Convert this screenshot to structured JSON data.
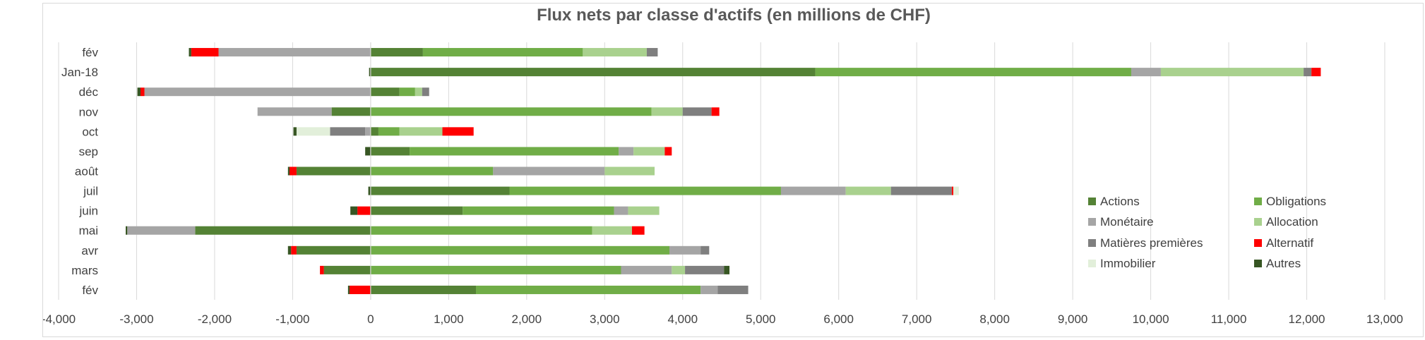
{
  "chart_data": {
    "type": "bar",
    "orientation": "horizontal",
    "stacked": true,
    "title": "Flux nets par classe d'actifs (en millions de CHF)",
    "xlabel": "",
    "ylabel": "",
    "xlim": [
      -4000,
      13000
    ],
    "x_ticks": [
      -4000,
      -3000,
      -2000,
      -1000,
      0,
      1000,
      2000,
      3000,
      4000,
      5000,
      6000,
      7000,
      8000,
      9000,
      10000,
      11000,
      12000,
      13000
    ],
    "x_tick_labels": [
      "-4,000",
      "-3,000",
      "-2,000",
      "-1,000",
      "0",
      "1,000",
      "2,000",
      "3,000",
      "4,000",
      "5,000",
      "6,000",
      "7,000",
      "8,000",
      "9,000",
      "10,000",
      "11,000",
      "12,000",
      "13,000"
    ],
    "grid": "vertical",
    "legend_position": "bottom-right",
    "categories": [
      "fév",
      "Jan-18",
      "déc",
      "nov",
      "oct",
      "sep",
      "août",
      "juil",
      "juin",
      "mai",
      "avr",
      "mars",
      "fév"
    ],
    "series": [
      {
        "name": "Actions",
        "color": "#548235",
        "values": [
          670,
          5700,
          370,
          -500,
          100,
          500,
          -950,
          1780,
          1180,
          -2250,
          -950,
          -600,
          1350
        ]
      },
      {
        "name": "Obligations",
        "color": "#70ad47",
        "values": [
          2050,
          4050,
          200,
          3600,
          270,
          2680,
          1570,
          3480,
          1940,
          2840,
          3830,
          3210,
          2880
        ]
      },
      {
        "name": "Monétaire",
        "color": "#a5a5a5",
        "values": [
          -1950,
          380,
          -2900,
          -950,
          -70,
          190,
          1430,
          830,
          180,
          -870,
          400,
          650,
          220
        ]
      },
      {
        "name": "Allocation",
        "color": "#a9d18e",
        "values": [
          820,
          1830,
          90,
          400,
          550,
          400,
          640,
          580,
          400,
          510,
          0,
          170,
          0
        ]
      },
      {
        "name": "Matières premières",
        "color": "#7f7f7f",
        "values": [
          140,
          100,
          90,
          370,
          -450,
          0,
          0,
          780,
          0,
          0,
          110,
          500,
          390
        ]
      },
      {
        "name": "Alternatif",
        "color": "#ff0000",
        "values": [
          -350,
          120,
          -50,
          100,
          400,
          90,
          -90,
          20,
          -170,
          160,
          -70,
          -50,
          -270
        ]
      },
      {
        "name": "Immobilier",
        "color": "#e2efda",
        "values": [
          0,
          0,
          0,
          0,
          -430,
          0,
          0,
          70,
          0,
          0,
          0,
          0,
          0
        ]
      },
      {
        "name": "Autres",
        "color": "#375623",
        "values": [
          -30,
          -20,
          -40,
          0,
          -40,
          -70,
          -20,
          -30,
          -90,
          -20,
          -40,
          70,
          -20
        ]
      }
    ]
  }
}
